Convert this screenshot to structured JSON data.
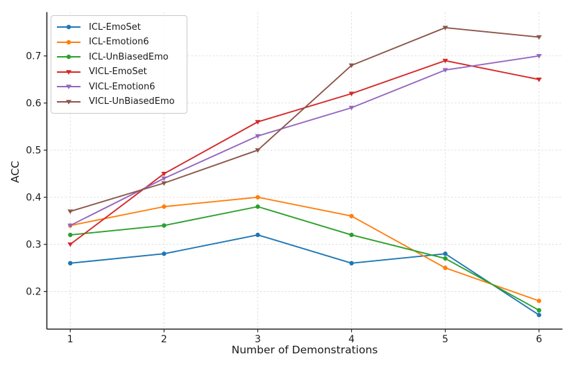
{
  "chart_data": {
    "type": "line",
    "x": [
      1,
      2,
      3,
      4,
      5,
      6
    ],
    "series": [
      {
        "name": "ICL-EmoSet",
        "color": "#1f77b4",
        "marker": "circle",
        "values": [
          0.26,
          0.28,
          0.32,
          0.26,
          0.28,
          0.15
        ]
      },
      {
        "name": "ICL-Emotion6",
        "color": "#ff7f0e",
        "marker": "circle",
        "values": [
          0.34,
          0.38,
          0.4,
          0.36,
          0.25,
          0.18
        ]
      },
      {
        "name": "ICL-UnBiasedEmo",
        "color": "#2ca02c",
        "marker": "circle",
        "values": [
          0.32,
          0.34,
          0.38,
          0.32,
          0.27,
          0.16
        ]
      },
      {
        "name": "VICL-EmoSet",
        "color": "#d62728",
        "marker": "triangle-down",
        "values": [
          0.3,
          0.45,
          0.56,
          0.62,
          0.69,
          0.65
        ]
      },
      {
        "name": "VICL-Emotion6",
        "color": "#9467bd",
        "marker": "triangle-down",
        "values": [
          0.34,
          0.44,
          0.53,
          0.59,
          0.67,
          0.7
        ]
      },
      {
        "name": "VICL-UnBiasedEmo",
        "color": "#8c564b",
        "marker": "triangle-down",
        "values": [
          0.37,
          0.43,
          0.5,
          0.68,
          0.76,
          0.74
        ]
      }
    ],
    "title": "",
    "xlabel": "Number of Demonstrations",
    "ylabel": "ACC",
    "xticks": [
      1,
      2,
      3,
      4,
      5,
      6
    ],
    "yticks": [
      0.2,
      0.3,
      0.4,
      0.5,
      0.6,
      0.7
    ],
    "xlim": [
      0.75,
      6.25
    ],
    "ylim": [
      0.12,
      0.793
    ],
    "grid": true,
    "legend_position": "upper-left",
    "grid_color": "#dcdcdc",
    "spine_color": "#262626"
  }
}
